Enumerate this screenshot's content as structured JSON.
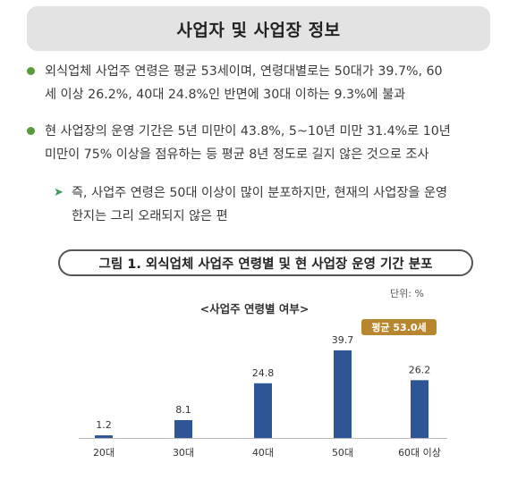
{
  "section": {
    "title": "사업자 및 사업장 정보"
  },
  "bullets": [
    {
      "lines": [
        "외식업체 사업주 연령은 평균 53세이며, 연령대별로는 50대가 39.7%, 60",
        "세 이상 26.2%, 40대 24.8%인 반면에 30대 이하는 9.3%에 불과"
      ]
    },
    {
      "lines": [
        "현 사업장의 운영 기간은 5년 미만이 43.8%, 5~10년 미만 31.4%로 10년",
        "미만이 75% 이상을 점유하는 등 평균 8년 정도로 길지 않은 것으로 조사"
      ]
    }
  ],
  "sub_bullet": {
    "marker": "➤",
    "lines": [
      "즉, 사업주 연령은 50대 이상이 많이 분포하지만, 현재의 사업장을 운영",
      "한지는 그리 오래되지 않은 편"
    ]
  },
  "figure": {
    "caption": "그림 1. 외식업체 사업주 연령별 및 현 사업장 운영 기간 분포",
    "unit": "단위: %"
  },
  "colors": {
    "bar": "#2e5596",
    "badge": "#b8862e",
    "bullet": "#5a9b3c",
    "header_bg": "#e3e3e3"
  },
  "chart_data": {
    "type": "bar",
    "title": "<사업주 연령별 여부>",
    "categories": [
      "20대",
      "30대",
      "40대",
      "50대",
      "60대 이상"
    ],
    "values": [
      1.2,
      8.1,
      24.8,
      39.7,
      26.2
    ],
    "value_labels": [
      "1.2",
      "8.1",
      "24.8",
      "39.7",
      "26.2"
    ],
    "annotation": "평균 53.0세",
    "ylim": [
      0,
      40
    ],
    "grid": false
  }
}
